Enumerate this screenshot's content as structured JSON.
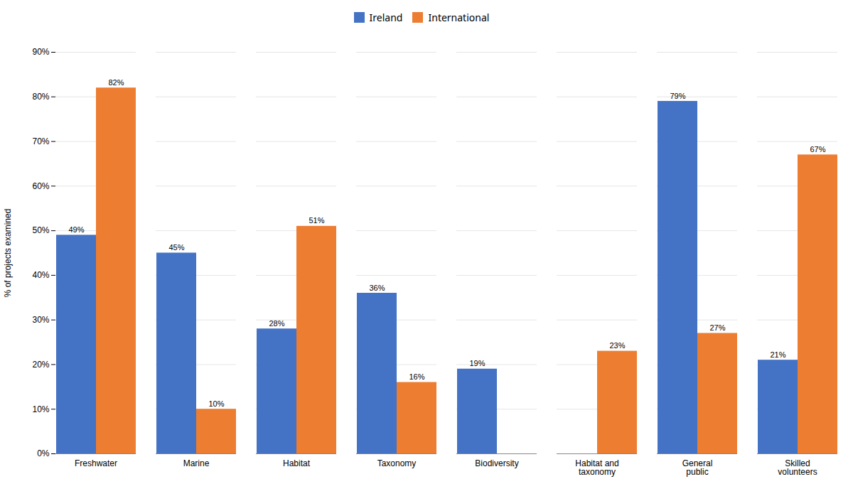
{
  "chart_data": {
    "type": "bar",
    "categories": [
      "Freshwater",
      "Marine",
      "Habitat",
      "Taxonomy",
      "Biodiversity",
      "Habitat and\ntaxonomy",
      "General\npublic",
      "Skilled\nvolunteers"
    ],
    "series": [
      {
        "name": "Ireland",
        "color": "#4472C4",
        "values": [
          49,
          45,
          28,
          36,
          19,
          0,
          79,
          21
        ],
        "value_labels": [
          "49%",
          "45%",
          "28%",
          "36%",
          "19%",
          null,
          "79%",
          "21%"
        ]
      },
      {
        "name": "International",
        "color": "#ED7D31",
        "values": [
          82,
          10,
          51,
          16,
          0,
          23,
          27,
          67
        ],
        "value_labels": [
          "82%",
          "10%",
          "51%",
          "16%",
          null,
          "23%",
          "27%",
          "67%"
        ]
      }
    ],
    "ylabel": "% of projects examined",
    "ylim": [
      0,
      90
    ],
    "yticks": [
      {
        "value": 0,
        "label": "0%"
      },
      {
        "value": 10,
        "label": "10%"
      },
      {
        "value": 20,
        "label": "20%"
      },
      {
        "value": 30,
        "label": "30%"
      },
      {
        "value": 40,
        "label": "40%"
      },
      {
        "value": 50,
        "label": "50%"
      },
      {
        "value": 60,
        "label": "60%"
      },
      {
        "value": 70,
        "label": "70%"
      },
      {
        "value": 80,
        "label": "80%"
      },
      {
        "value": 90,
        "label": "90%"
      }
    ],
    "grid": true,
    "legend": "top",
    "data_labels": true
  }
}
